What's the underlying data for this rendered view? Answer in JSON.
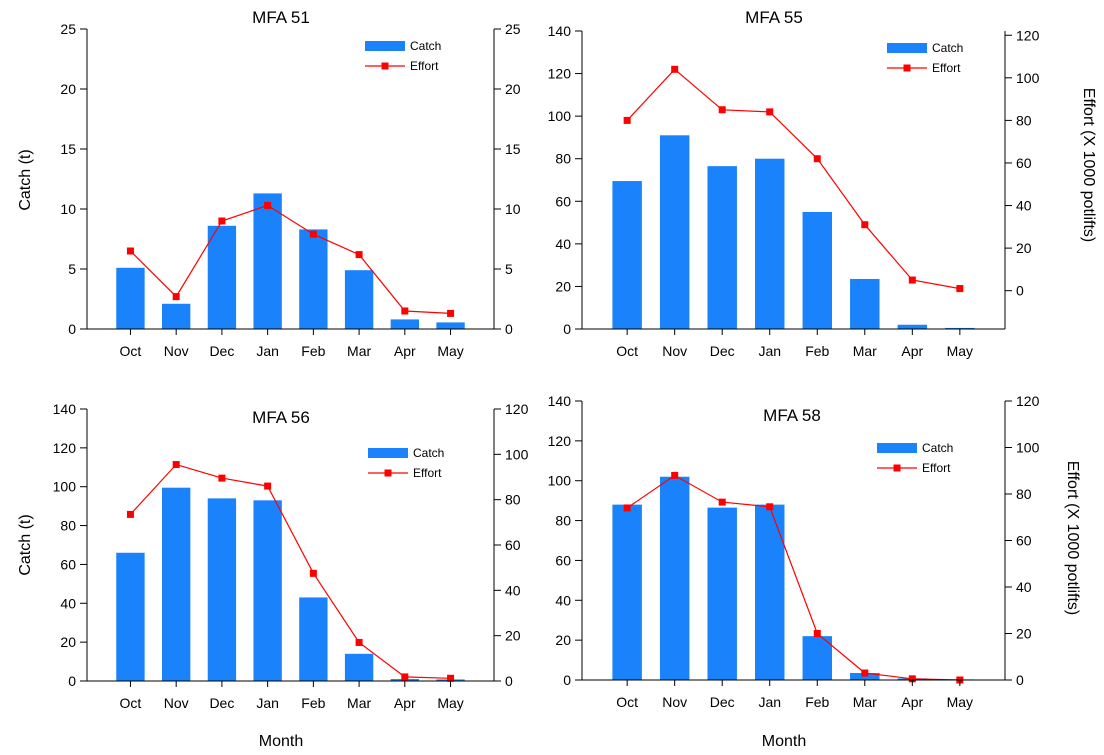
{
  "figure": {
    "xlabel_left": "Month",
    "xlabel_right": "Month",
    "ylabel_catch_top": "Catch (t)",
    "ylabel_catch_bottom": "Catch (t)",
    "ylabel_effort_top": "Effort (X 1000 potlifts)",
    "ylabel_effort_bottom": "Effort (X 1000 potlifts)"
  },
  "colors": {
    "bar": "#1a82fa",
    "line": "#ff0000",
    "marker": "#ff0000"
  },
  "chart_data": [
    {
      "type": "bar",
      "title": "MFA 51",
      "categories": [
        "Oct",
        "Nov",
        "Dec",
        "Jan",
        "Feb",
        "Mar",
        "Apr",
        "May"
      ],
      "ylabel": "Catch (t)",
      "y2label": "",
      "ylim": [
        0,
        25
      ],
      "y2lim": [
        0,
        25
      ],
      "yticks": [
        0,
        5,
        10,
        15,
        20,
        25
      ],
      "y2ticks": [
        0,
        5,
        10,
        15,
        20,
        25
      ],
      "legend": [
        "Catch",
        "Effort"
      ],
      "legend_position": "top-right",
      "series": [
        {
          "name": "Catch",
          "kind": "bar",
          "axis": "left",
          "values": [
            5.1,
            2.1,
            8.6,
            11.3,
            8.3,
            4.9,
            0.8,
            0.55
          ]
        },
        {
          "name": "Effort",
          "kind": "line",
          "axis": "right",
          "values": [
            6.5,
            2.7,
            9.0,
            10.3,
            7.9,
            6.2,
            1.5,
            1.3
          ]
        }
      ]
    },
    {
      "type": "bar",
      "title": "MFA 55",
      "categories": [
        "Oct",
        "Nov",
        "Dec",
        "Jan",
        "Feb",
        "Mar",
        "Apr",
        "May"
      ],
      "ylabel": "",
      "y2label": "Effort (X 1000 potlifts)",
      "ylim": [
        0,
        140
      ],
      "y2lim": [
        -18,
        122
      ],
      "yticks": [
        0,
        20,
        40,
        60,
        80,
        100,
        120,
        140
      ],
      "y2ticks": [
        0,
        20,
        40,
        60,
        80,
        100,
        120
      ],
      "legend": [
        "Catch",
        "Effort"
      ],
      "legend_position": "top-right",
      "series": [
        {
          "name": "Catch",
          "kind": "bar",
          "axis": "left",
          "values": [
            69.5,
            91,
            76.5,
            80,
            55,
            23.5,
            2,
            0.5
          ]
        },
        {
          "name": "Effort",
          "kind": "line",
          "axis": "right",
          "values": [
            80,
            104,
            85,
            84,
            62,
            31,
            5,
            1
          ]
        }
      ]
    },
    {
      "type": "bar",
      "title": "MFA 56",
      "categories": [
        "Oct",
        "Nov",
        "Dec",
        "Jan",
        "Feb",
        "Mar",
        "Apr",
        "May"
      ],
      "ylabel": "Catch (t)",
      "y2label": "",
      "ylim": [
        0,
        140
      ],
      "y2lim": [
        0,
        120
      ],
      "yticks": [
        0,
        20,
        40,
        60,
        80,
        100,
        120,
        140
      ],
      "y2ticks": [
        0,
        20,
        40,
        60,
        80,
        100,
        120
      ],
      "legend": [
        "Catch",
        "Effort"
      ],
      "legend_position": "top-right",
      "series": [
        {
          "name": "Catch",
          "kind": "bar",
          "axis": "left",
          "values": [
            66,
            99.5,
            94,
            93,
            43,
            14,
            1,
            0.8
          ]
        },
        {
          "name": "Effort",
          "kind": "line",
          "axis": "right",
          "values": [
            73.5,
            95.5,
            89.5,
            86,
            47.5,
            17,
            1.8,
            1.2
          ]
        }
      ]
    },
    {
      "type": "bar",
      "title": "MFA 58",
      "categories": [
        "Oct",
        "Nov",
        "Dec",
        "Jan",
        "Feb",
        "Mar",
        "Apr",
        "May"
      ],
      "ylabel": "",
      "y2label": "Effort (X 1000 potlifts)",
      "ylim": [
        0,
        140
      ],
      "y2lim": [
        0,
        120
      ],
      "yticks": [
        0,
        20,
        40,
        60,
        80,
        100,
        120,
        140
      ],
      "y2ticks": [
        0,
        20,
        40,
        60,
        80,
        100,
        120
      ],
      "legend": [
        "Catch",
        "Effort"
      ],
      "legend_position": "top-right",
      "series": [
        {
          "name": "Catch",
          "kind": "bar",
          "axis": "left",
          "values": [
            88,
            102,
            86.5,
            88,
            22,
            3.5,
            0.8,
            0.3
          ]
        },
        {
          "name": "Effort",
          "kind": "line",
          "axis": "right",
          "values": [
            74,
            88,
            76.5,
            74.5,
            20,
            3,
            0.5,
            0
          ]
        }
      ]
    }
  ]
}
